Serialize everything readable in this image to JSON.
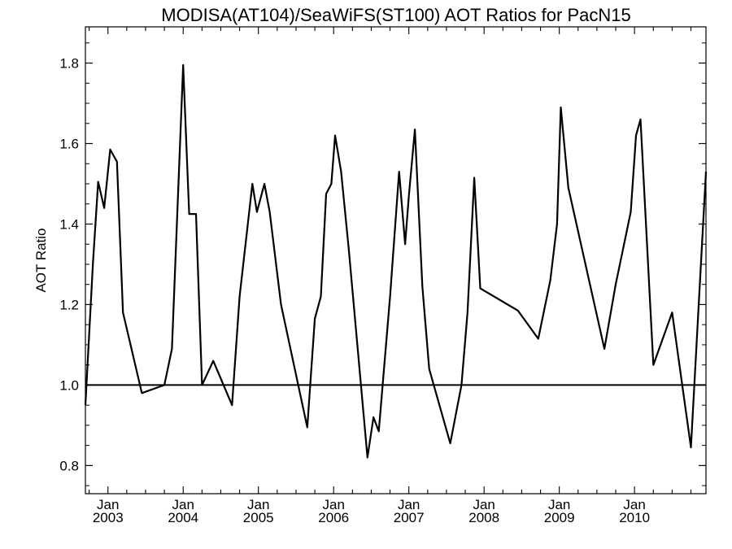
{
  "chart_data": {
    "type": "line",
    "title": "MODISA(AT104)/SeaWiFS(ST100)  AOT Ratios for PacN15",
    "xlabel": "",
    "ylabel": "AOT Ratio",
    "xlim": [
      2002.7,
      2010.95
    ],
    "ylim": [
      0.73,
      1.89
    ],
    "grid": false,
    "reference_line": 1.0,
    "yticks": [
      {
        "value": 0.8,
        "label": "0.8"
      },
      {
        "value": 1.0,
        "label": "1.0"
      },
      {
        "value": 1.2,
        "label": "1.2"
      },
      {
        "value": 1.4,
        "label": "1.4"
      },
      {
        "value": 1.6,
        "label": "1.6"
      },
      {
        "value": 1.8,
        "label": "1.8"
      }
    ],
    "xticks": [
      {
        "value": 2003.0,
        "label_month": "Jan",
        "label_year": "2003"
      },
      {
        "value": 2004.0,
        "label_month": "Jan",
        "label_year": "2004"
      },
      {
        "value": 2005.0,
        "label_month": "Jan",
        "label_year": "2005"
      },
      {
        "value": 2006.0,
        "label_month": "Jan",
        "label_year": "2006"
      },
      {
        "value": 2007.0,
        "label_month": "Jan",
        "label_year": "2007"
      },
      {
        "value": 2008.0,
        "label_month": "Jan",
        "label_year": "2008"
      },
      {
        "value": 2009.0,
        "label_month": "Jan",
        "label_year": "2009"
      },
      {
        "value": 2010.0,
        "label_month": "Jan",
        "label_year": "2010"
      }
    ],
    "series": [
      {
        "x": [
          2002.7,
          2002.8,
          2002.87,
          2002.95,
          2003.03,
          2003.12,
          2003.2,
          2003.45,
          2003.75,
          2003.85,
          2004.0,
          2004.08,
          2004.17,
          2004.25,
          2004.4,
          2004.65,
          2004.75,
          2004.92,
          2004.98,
          2005.08,
          2005.15,
          2005.3,
          2005.65,
          2005.75,
          2005.83,
          2005.9,
          2005.97,
          2006.02,
          2006.1,
          2006.2,
          2006.45,
          2006.53,
          2006.6,
          2006.75,
          2006.87,
          2006.95,
          2007.0,
          2007.08,
          2007.18,
          2007.27,
          2007.55,
          2007.7,
          2007.78,
          2007.87,
          2007.95,
          2008.45,
          2008.72,
          2008.88,
          2008.97,
          2009.02,
          2009.12,
          2009.6,
          2009.75,
          2009.95,
          2010.02,
          2010.08,
          2010.25,
          2010.5,
          2010.75,
          2010.95
        ],
        "y": [
          0.95,
          1.3,
          1.505,
          1.44,
          1.585,
          1.555,
          1.18,
          0.98,
          1.0,
          1.09,
          1.795,
          1.425,
          1.425,
          1.0,
          1.06,
          0.95,
          1.22,
          1.5,
          1.43,
          1.5,
          1.43,
          1.2,
          0.895,
          1.165,
          1.22,
          1.475,
          1.5,
          1.62,
          1.53,
          1.34,
          0.82,
          0.92,
          0.885,
          1.22,
          1.53,
          1.35,
          1.47,
          1.635,
          1.245,
          1.04,
          0.855,
          1.0,
          1.18,
          1.515,
          1.24,
          1.185,
          1.115,
          1.26,
          1.4,
          1.69,
          1.49,
          1.09,
          1.25,
          1.43,
          1.62,
          1.66,
          1.05,
          1.18,
          0.845,
          1.53
        ]
      }
    ]
  }
}
